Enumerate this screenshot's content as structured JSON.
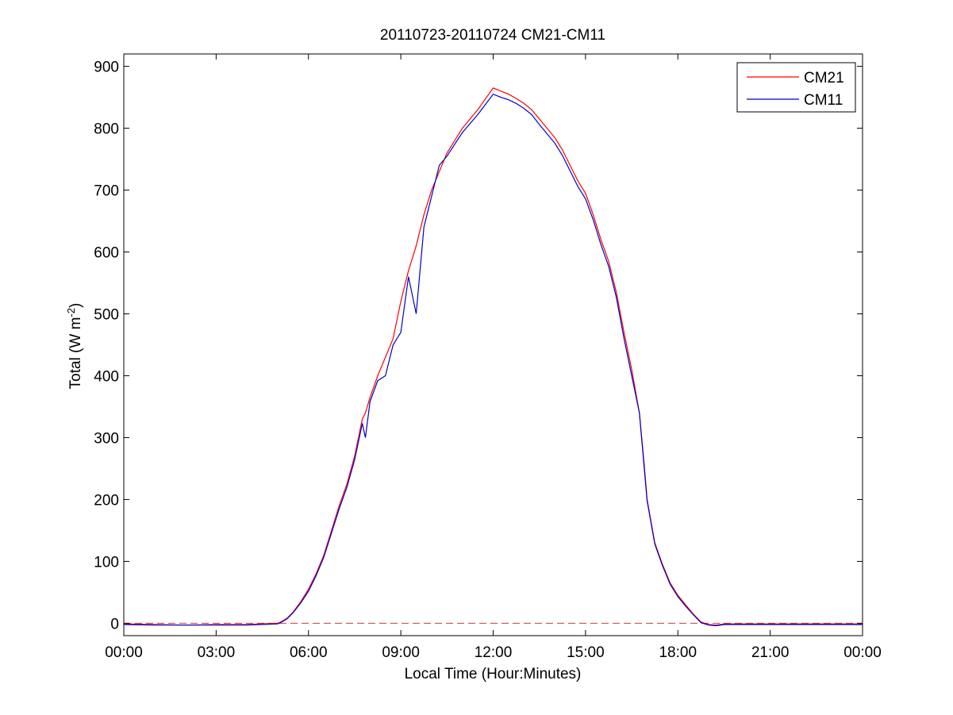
{
  "chart_data": {
    "type": "line",
    "title": "20110723-20110724 CM21-CM11",
    "xlabel": "Local Time (Hour:Minutes)",
    "ylabel_main": "Total (W m",
    "ylabel_sup": "-2",
    "ylabel_close": ")",
    "xlim": [
      0,
      24
    ],
    "ylim": [
      -20,
      920
    ],
    "x_unit": "hours",
    "x_ticks": [
      0,
      3,
      6,
      9,
      12,
      15,
      18,
      21,
      24
    ],
    "x_tick_labels": [
      "00:00",
      "03:00",
      "06:00",
      "09:00",
      "12:00",
      "15:00",
      "18:00",
      "21:00",
      "00:00"
    ],
    "y_ticks": [
      0,
      100,
      200,
      300,
      400,
      500,
      600,
      700,
      800,
      900
    ],
    "y_tick_labels": [
      "0",
      "100",
      "200",
      "300",
      "400",
      "500",
      "600",
      "700",
      "800",
      "900"
    ],
    "grid": false,
    "legend_position": "top-right",
    "reference_line": {
      "y": 0,
      "style": "dashed",
      "color": "#c04040"
    },
    "series": [
      {
        "name": "CM21",
        "color": "#ff0000",
        "x": [
          0,
          1,
          2,
          3,
          4,
          5,
          5.1,
          5.3,
          5.5,
          5.75,
          6,
          6.25,
          6.5,
          6.75,
          7,
          7.25,
          7.5,
          7.75,
          7.85,
          8,
          8.25,
          8.5,
          8.75,
          9,
          9.25,
          9.5,
          9.75,
          10,
          10.25,
          10.5,
          11,
          11.5,
          12,
          12.25,
          12.5,
          12.75,
          13,
          13.25,
          13.5,
          14,
          14.25,
          14.5,
          14.75,
          15,
          15.25,
          15.5,
          15.75,
          16,
          16.25,
          16.5,
          16.75,
          16.9,
          17,
          17.25,
          17.5,
          17.75,
          18,
          18.25,
          18.5,
          18.75,
          19,
          19.25,
          19.5,
          20,
          21,
          22,
          23,
          24
        ],
        "y": [
          -1,
          -2,
          -3,
          -2,
          -2,
          0,
          2,
          8,
          18,
          35,
          55,
          80,
          110,
          150,
          190,
          225,
          270,
          330,
          340,
          365,
          400,
          430,
          460,
          520,
          570,
          610,
          660,
          700,
          730,
          760,
          800,
          830,
          865,
          860,
          855,
          848,
          840,
          830,
          815,
          785,
          765,
          740,
          715,
          695,
          660,
          620,
          585,
          535,
          470,
          410,
          340,
          260,
          200,
          130,
          95,
          65,
          45,
          30,
          15,
          2,
          -2,
          -3,
          -1,
          -1,
          -1,
          -1,
          -1,
          -1
        ]
      },
      {
        "name": "CM11",
        "color": "#0000cc",
        "x": [
          0,
          1,
          2,
          3,
          4,
          5,
          5.1,
          5.3,
          5.5,
          5.75,
          6,
          6.25,
          6.5,
          6.75,
          7,
          7.25,
          7.5,
          7.75,
          7.85,
          8,
          8.25,
          8.5,
          8.75,
          9,
          9.25,
          9.5,
          9.75,
          10,
          10.25,
          10.5,
          11,
          11.5,
          12,
          12.25,
          12.5,
          12.75,
          13,
          13.25,
          13.5,
          14,
          14.25,
          14.5,
          14.75,
          15,
          15.25,
          15.5,
          15.75,
          16,
          16.25,
          16.5,
          16.75,
          16.9,
          17,
          17.25,
          17.5,
          17.75,
          18,
          18.25,
          18.5,
          18.75,
          19,
          19.25,
          19.5,
          20,
          21,
          22,
          23,
          24
        ],
        "y": [
          -2,
          -3,
          -3,
          -3,
          -3,
          -1,
          1,
          7,
          17,
          33,
          52,
          77,
          107,
          146,
          185,
          220,
          264,
          323,
          300,
          358,
          392,
          400,
          450,
          470,
          560,
          500,
          640,
          690,
          740,
          755,
          793,
          822,
          855,
          850,
          846,
          840,
          832,
          822,
          806,
          776,
          756,
          731,
          706,
          686,
          652,
          612,
          577,
          527,
          460,
          400,
          340,
          255,
          198,
          128,
          93,
          63,
          43,
          28,
          14,
          1,
          -3,
          -4,
          -2,
          -2,
          -2,
          -2,
          -2,
          -2
        ]
      }
    ]
  }
}
